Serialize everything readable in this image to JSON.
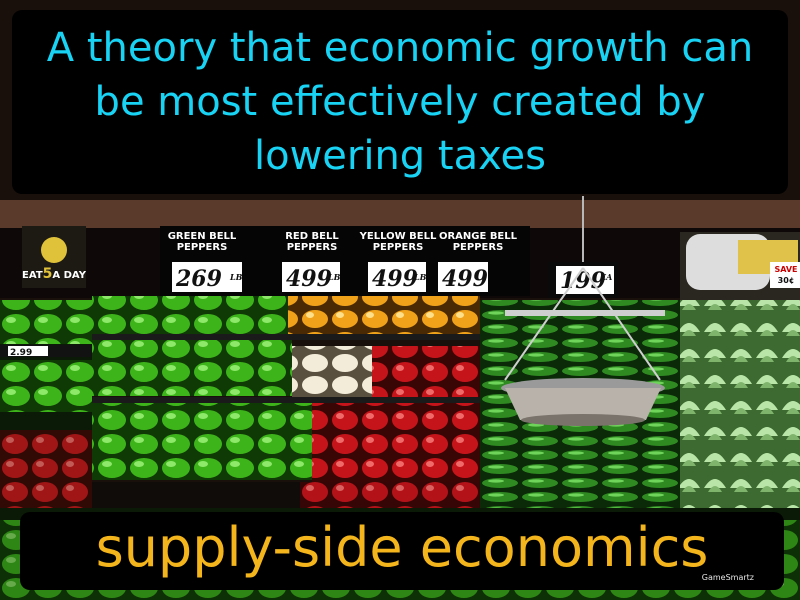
{
  "definition": "A theory that economic growth can be most effectively created by lowering taxes",
  "term": "supply-side economics",
  "brand": "GameSmartz",
  "signs": {
    "green": [
      "GREEN BELL",
      "PEPPERS"
    ],
    "red": [
      "RED BELL",
      "PEPPERS"
    ],
    "yellow": [
      "YELLOW BELL",
      "PEPPERS"
    ],
    "orange": [
      "ORANGE BELL",
      "PEPPERS"
    ]
  },
  "prices": {
    "green": "269",
    "green_unit": "LB",
    "red": "499",
    "red_unit": "LB",
    "yellow": "499",
    "yellow_unit": "LB",
    "orange": "499",
    "cucumber": "199",
    "cucumber_unit": "EA",
    "left": "2.99"
  },
  "banner": [
    "EAT",
    "5",
    "A DAY"
  ],
  "save_sign": [
    "SAVE",
    "30¢"
  ],
  "colors": {
    "definition_text": "#19d3f5",
    "term_text": "#f3b51b",
    "caption_bg": "#000000"
  }
}
